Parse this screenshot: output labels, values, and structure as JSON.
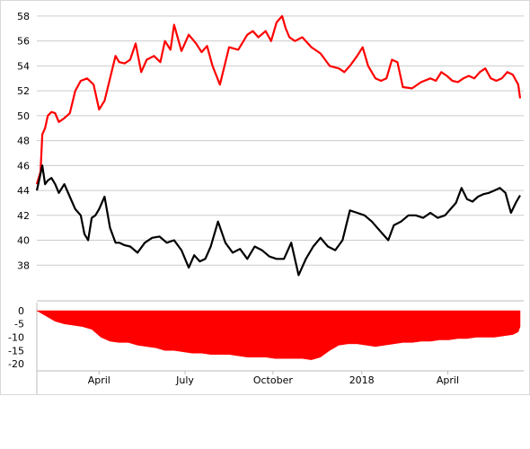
{
  "colors": {
    "series_upper": "#ff0000",
    "series_lower": "#000000",
    "drawdown_fill": "#ff0000",
    "grid": "#cccccc",
    "axis": "#bbbbbb"
  },
  "chart_data": [
    {
      "type": "line",
      "title": "",
      "xlabel": "",
      "ylabel": "",
      "grid": true,
      "ylim": [
        36,
        58.5
      ],
      "yticks": [
        38,
        40,
        42,
        44,
        46,
        48,
        50,
        52,
        54,
        56,
        58
      ],
      "xlim": [
        0,
        530
      ],
      "series": [
        {
          "color": "#ff0000",
          "x": [
            0,
            4,
            6,
            9,
            12,
            16,
            20,
            24,
            30,
            36,
            42,
            48,
            55,
            62,
            68,
            74,
            80,
            86,
            90,
            96,
            102,
            108,
            114,
            120,
            128,
            135,
            140,
            146,
            150,
            158,
            166,
            174,
            180,
            186,
            192,
            200,
            210,
            220,
            230,
            236,
            242,
            250,
            256,
            262,
            268,
            272,
            276,
            282,
            290,
            300,
            310,
            320,
            330,
            336,
            342,
            350,
            356,
            362,
            370,
            376,
            382,
            388,
            394,
            400,
            410,
            420,
            430,
            436,
            442,
            448,
            454,
            460,
            466,
            472,
            478,
            484,
            490,
            496,
            502,
            508,
            514,
            520,
            526,
            528
          ],
          "y": [
            44.5,
            45.5,
            48.5,
            49,
            50,
            50.3,
            50.2,
            49.5,
            49.8,
            50.2,
            52,
            52.8,
            53,
            52.5,
            50.5,
            51.2,
            53,
            54.8,
            54.3,
            54.2,
            54.5,
            55.8,
            53.5,
            54.5,
            54.8,
            54.3,
            56,
            55.3,
            57.3,
            55.2,
            56.5,
            55.8,
            55.1,
            55.6,
            54,
            52.5,
            55.5,
            55.3,
            56.5,
            56.8,
            56.3,
            56.8,
            56,
            57.5,
            58,
            57,
            56.3,
            56,
            56.3,
            55.5,
            55,
            54,
            53.8,
            53.5,
            54,
            54.8,
            55.5,
            54,
            53,
            52.8,
            53,
            54.5,
            54.3,
            52.3,
            52.2,
            52.7,
            53,
            52.8,
            53.5,
            53.2,
            52.8,
            52.7,
            53,
            53.2,
            53,
            53.5,
            53.8,
            53,
            52.8,
            53,
            53.5,
            53.3,
            52.5,
            51.4
          ]
        },
        {
          "color": "#000000",
          "x": [
            0,
            3,
            6,
            9,
            12,
            16,
            20,
            24,
            30,
            36,
            42,
            48,
            52,
            56,
            60,
            64,
            68,
            74,
            80,
            86,
            90,
            96,
            102,
            110,
            118,
            126,
            134,
            142,
            150,
            158,
            166,
            172,
            178,
            184,
            190,
            198,
            206,
            214,
            222,
            230,
            238,
            246,
            254,
            262,
            270,
            278,
            286,
            294,
            302,
            310,
            318,
            326,
            334,
            342,
            350,
            358,
            366,
            372,
            378,
            384,
            390,
            398,
            406,
            414,
            422,
            430,
            438,
            446,
            452,
            458,
            464,
            470,
            476,
            482,
            488,
            494,
            500,
            506,
            512,
            518,
            524,
            528
          ],
          "y": [
            44,
            45,
            46,
            44.5,
            44.8,
            45,
            44.5,
            43.8,
            44.5,
            43.5,
            42.5,
            42,
            40.5,
            40,
            41.8,
            42,
            42.5,
            43.5,
            41,
            39.8,
            39.8,
            39.6,
            39.5,
            39,
            39.8,
            40.2,
            40.3,
            39.8,
            40,
            39.2,
            37.8,
            38.8,
            38.3,
            38.5,
            39.5,
            41.5,
            39.8,
            39,
            39.3,
            38.5,
            39.5,
            39.2,
            38.7,
            38.5,
            38.5,
            39.8,
            37.2,
            38.5,
            39.5,
            40.2,
            39.5,
            39.2,
            40,
            42.4,
            42.2,
            42,
            41.5,
            41,
            40.5,
            40,
            41.2,
            41.5,
            42,
            42,
            41.8,
            42.2,
            41.8,
            42,
            42.5,
            43,
            44.2,
            43.3,
            43.1,
            43.5,
            43.7,
            43.8,
            44,
            44.2,
            43.8,
            42.2,
            43.1,
            43.6
          ]
        }
      ]
    },
    {
      "type": "area",
      "title": "",
      "xlabel": "",
      "ylabel": "",
      "grid": false,
      "ylim": [
        -22,
        1
      ],
      "yticks": [
        0,
        -5,
        -10,
        -15,
        -20
      ],
      "xlim": [
        0,
        530
      ],
      "x_tick_labels": [
        "April",
        "July",
        "October",
        "2018",
        "April"
      ],
      "x_tick_positions": [
        68,
        162,
        258,
        355,
        449
      ],
      "series": [
        {
          "color": "#ff0000",
          "x": [
            0,
            10,
            20,
            30,
            40,
            50,
            60,
            70,
            80,
            90,
            100,
            110,
            120,
            130,
            140,
            150,
            160,
            170,
            180,
            190,
            200,
            210,
            220,
            230,
            240,
            250,
            260,
            270,
            280,
            290,
            300,
            310,
            320,
            330,
            340,
            350,
            360,
            370,
            380,
            390,
            400,
            410,
            420,
            430,
            440,
            450,
            460,
            470,
            480,
            490,
            500,
            510,
            520,
            526,
            528
          ],
          "y": [
            0,
            -2,
            -4,
            -5,
            -5.5,
            -6,
            -7,
            -10,
            -11.5,
            -12,
            -12,
            -13,
            -13.5,
            -14,
            -15,
            -15,
            -15.5,
            -16,
            -16,
            -16.5,
            -16.5,
            -16.5,
            -17,
            -17.5,
            -17.5,
            -17.5,
            -18,
            -18,
            -18,
            -18,
            -18.5,
            -17.5,
            -15,
            -13,
            -12.5,
            -12.5,
            -13,
            -13.5,
            -13,
            -12.5,
            -12,
            -12,
            -11.5,
            -11.5,
            -11,
            -11,
            -10.5,
            -10.5,
            -10,
            -10,
            -10,
            -9.5,
            -9,
            -8,
            -6
          ]
        }
      ]
    }
  ]
}
